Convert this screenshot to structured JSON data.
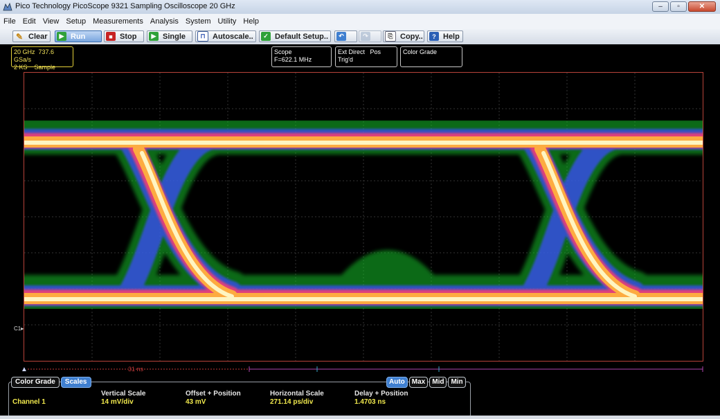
{
  "window": {
    "title": "Pico Technology   PicoScope 9321   Sampling Oscilloscope 20 GHz",
    "minimize": "–",
    "maximize": "▫",
    "close": "✕"
  },
  "menu": [
    "File",
    "Edit",
    "View",
    "Setup",
    "Measurements",
    "Analysis",
    "System",
    "Utility",
    "Help"
  ],
  "toolbar": {
    "clear": "Clear",
    "run": "Run",
    "stop": "Stop",
    "single": "Single",
    "autoscale": "Autoscale..",
    "default_setup": "Default Setup..",
    "copy": "Copy..",
    "help": "Help"
  },
  "status": {
    "bandwidth": "20 GHz",
    "sample_rate": "737.6 GSa/s",
    "record_length": "2 KS",
    "acq_mode": "Sample",
    "scope_label": "Scope",
    "frequency": "F=622.1 MHz",
    "trigger_source": "Ext Direct",
    "trigger_slope": "Pos",
    "trigger_state": "Trig'd",
    "display_mode": "Color Grade"
  },
  "channel_marker": "C1",
  "ruler": {
    "marker_label": "31 ns"
  },
  "panel": {
    "tabs": [
      "Color Grade",
      "Scales"
    ],
    "selected_tab": "Scales",
    "modes": [
      "Auto",
      "Max",
      "Mid",
      "Min"
    ],
    "selected_mode": "Auto",
    "channel": "Channel 1",
    "headers": {
      "vertical_scale": "Vertical Scale",
      "offset_position": "Offset + Position",
      "horizontal_scale": "Horizontal Scale",
      "delay_position": "Delay + Position"
    },
    "values": {
      "vertical_scale": "14 mV/div",
      "offset_position": "43 mV",
      "horizontal_scale": "271.14 ps/div",
      "delay_position": "1.4703 ns"
    }
  },
  "colors": {
    "grid": "#3a3a3a",
    "frame": "#b9433a",
    "grade_hot": "#fff9c9",
    "grade_warm": "#ffb13d",
    "grade_mid": "#ff3c6e",
    "grade_cool": "#3b4bff",
    "grade_cold": "#18c12c",
    "accent_blue": "#3f7fd0",
    "value_yellow": "#f1e94d"
  }
}
